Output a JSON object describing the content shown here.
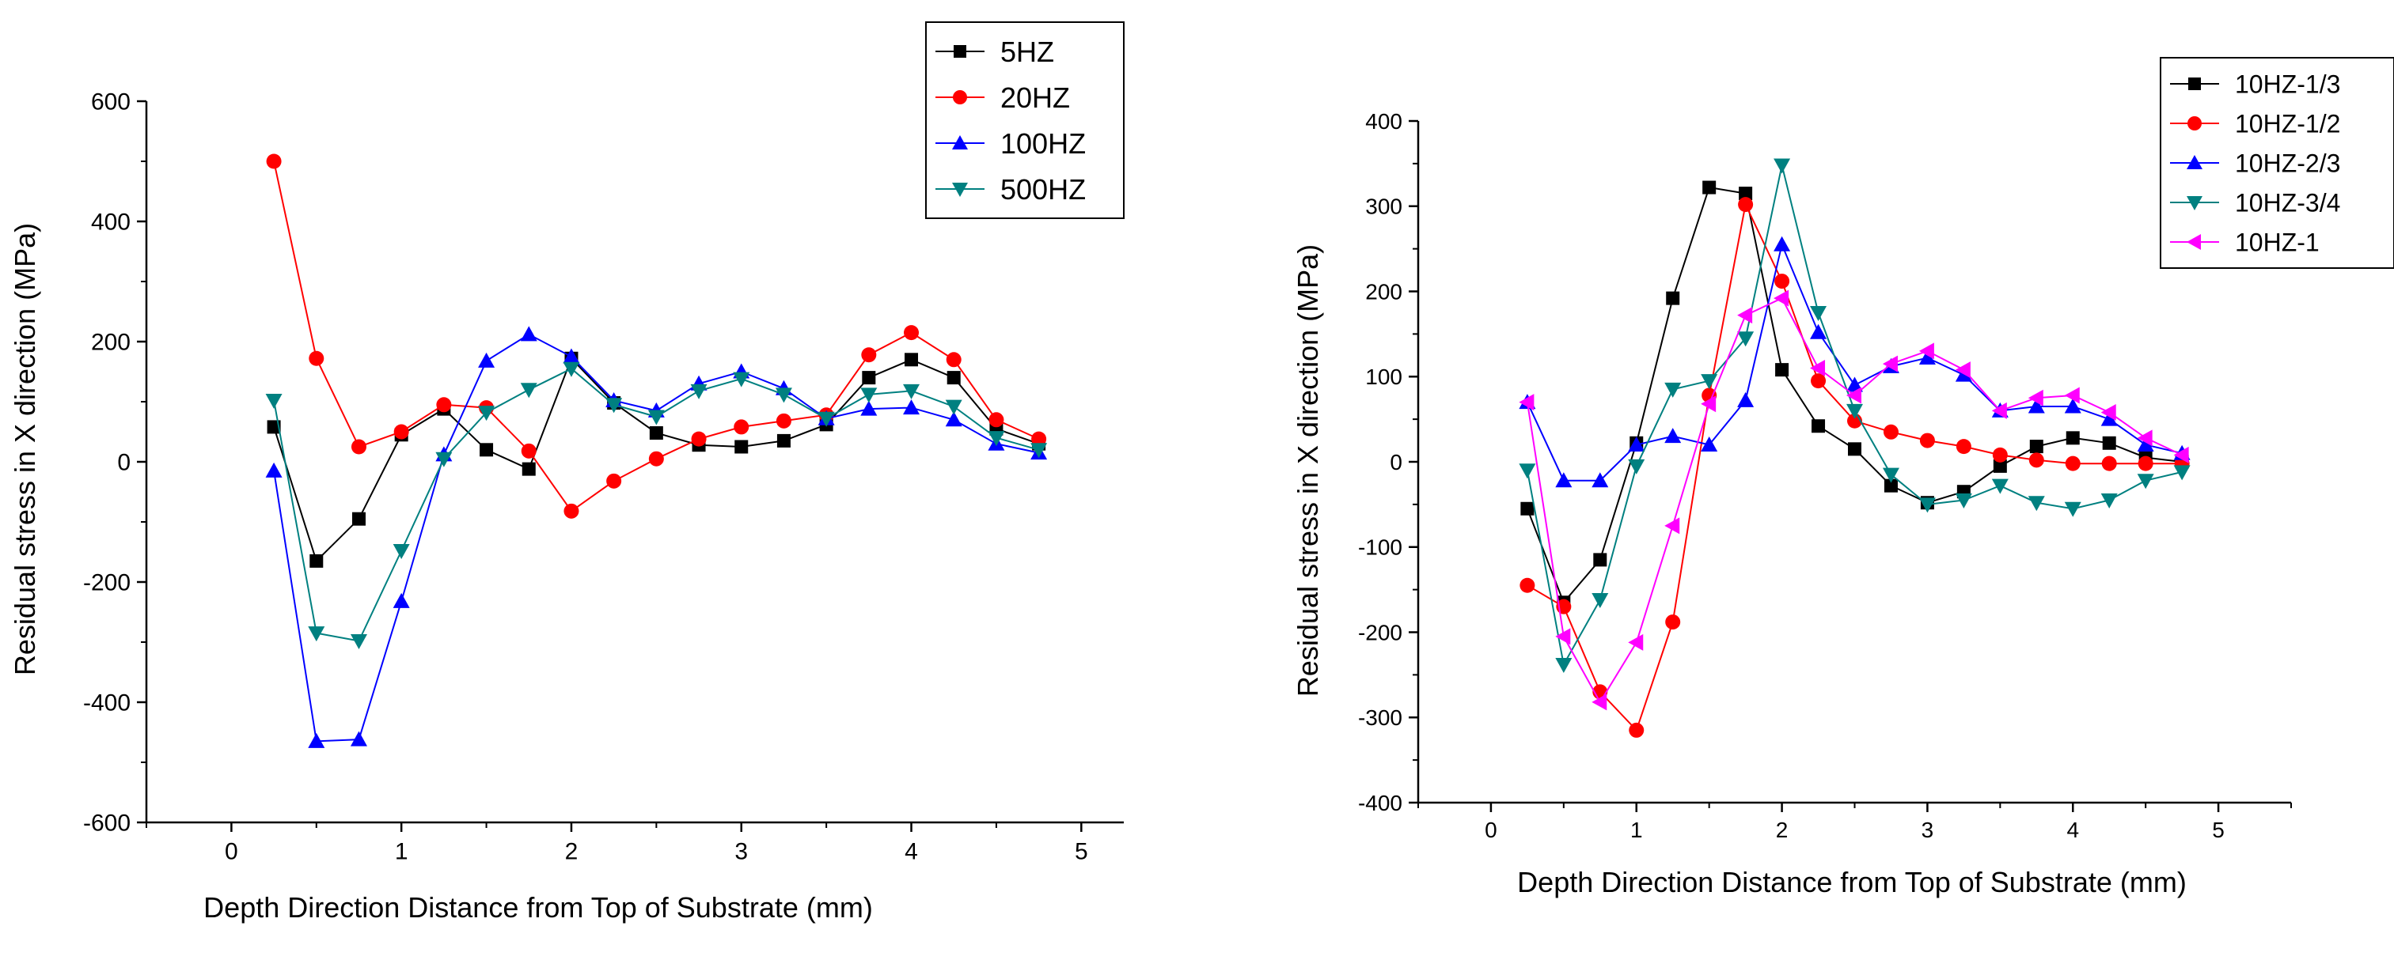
{
  "chart_data": [
    {
      "type": "line",
      "title": "",
      "xlabel": "Depth Direction Distance from Top of Substrate (mm)",
      "ylabel": "Residual stress in X direction (MPa)",
      "xlim": [
        -0.5,
        5.25
      ],
      "ylim": [
        -600,
        600
      ],
      "xticks": [
        0,
        1,
        2,
        3,
        4,
        5
      ],
      "yticks": [
        -600,
        -400,
        -200,
        0,
        200,
        400,
        600
      ],
      "x": [
        0.25,
        0.5,
        0.75,
        1.0,
        1.25,
        1.5,
        1.75,
        2.0,
        2.25,
        2.5,
        2.75,
        3.0,
        3.25,
        3.5,
        3.75,
        4.0,
        4.25,
        4.5,
        4.75
      ],
      "legend_position": "top-right",
      "series": [
        {
          "name": "5HZ",
          "color": "#000000",
          "marker": "square",
          "values": [
            58,
            -165,
            -95,
            45,
            88,
            20,
            -12,
            172,
            98,
            48,
            28,
            25,
            35,
            62,
            140,
            170,
            140,
            55,
            30
          ]
        },
        {
          "name": "20HZ",
          "color": "#ff0000",
          "marker": "circle",
          "values": [
            500,
            172,
            25,
            50,
            95,
            90,
            18,
            -82,
            -32,
            5,
            38,
            58,
            68,
            78,
            178,
            215,
            170,
            70,
            38
          ]
        },
        {
          "name": "100HZ",
          "color": "#0000ff",
          "marker": "triangle-up",
          "values": [
            -15,
            -465,
            -462,
            -232,
            12,
            168,
            212,
            175,
            102,
            85,
            130,
            150,
            122,
            72,
            88,
            90,
            70,
            30,
            15
          ]
        },
        {
          "name": "500HZ",
          "color": "#008080",
          "marker": "triangle-down",
          "values": [
            102,
            -285,
            -298,
            -148,
            5,
            82,
            120,
            155,
            95,
            75,
            118,
            138,
            112,
            72,
            112,
            118,
            92,
            40,
            20
          ]
        }
      ]
    },
    {
      "type": "line",
      "title": "",
      "xlabel": "Depth Direction Distance from Top of Substrate (mm)",
      "ylabel": "Residual stress in X direction (MPa)",
      "xlim": [
        -0.5,
        5.5
      ],
      "ylim": [
        -400,
        400
      ],
      "xticks": [
        0,
        1,
        2,
        3,
        4,
        5
      ],
      "yticks": [
        -400,
        -300,
        -200,
        -100,
        0,
        100,
        200,
        300,
        400
      ],
      "x": [
        0.25,
        0.5,
        0.75,
        1.0,
        1.25,
        1.5,
        1.75,
        2.0,
        2.25,
        2.5,
        2.75,
        3.0,
        3.25,
        3.5,
        3.75,
        4.0,
        4.25,
        4.5,
        4.75
      ],
      "legend_position": "top-right",
      "series": [
        {
          "name": "10HZ-1/3",
          "color": "#000000",
          "marker": "square",
          "values": [
            -55,
            -165,
            -115,
            22,
            192,
            322,
            315,
            108,
            42,
            15,
            -28,
            -48,
            -35,
            -5,
            18,
            28,
            22,
            5,
            0
          ]
        },
        {
          "name": "10HZ-1/2",
          "color": "#ff0000",
          "marker": "circle",
          "values": [
            -145,
            -170,
            -270,
            -315,
            -188,
            78,
            302,
            212,
            95,
            48,
            35,
            25,
            18,
            8,
            2,
            -2,
            -2,
            -2,
            -2
          ]
        },
        {
          "name": "10HZ-2/3",
          "color": "#0000ff",
          "marker": "triangle-up",
          "values": [
            70,
            -22,
            -22,
            20,
            30,
            20,
            72,
            255,
            152,
            90,
            112,
            122,
            102,
            60,
            65,
            65,
            50,
            20,
            10
          ]
        },
        {
          "name": "10HZ-3/4",
          "color": "#008080",
          "marker": "triangle-down",
          "values": [
            -10,
            -238,
            -162,
            -5,
            85,
            95,
            145,
            348,
            175,
            60,
            -15,
            -50,
            -45,
            -28,
            -48,
            -55,
            -45,
            -22,
            -12
          ]
        },
        {
          "name": "10HZ-1",
          "color": "#ff00ff",
          "marker": "triangle-left",
          "values": [
            70,
            -205,
            -282,
            -212,
            -75,
            68,
            172,
            192,
            110,
            78,
            115,
            130,
            108,
            60,
            75,
            78,
            58,
            28,
            8
          ]
        }
      ]
    }
  ]
}
